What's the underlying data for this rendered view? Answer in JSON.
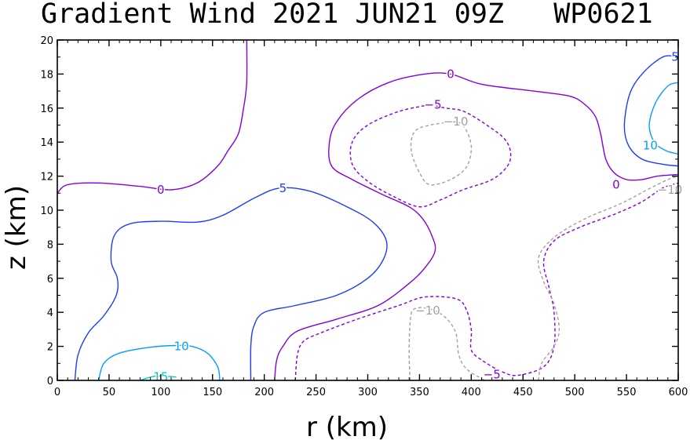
{
  "chart_data": {
    "type": "contour",
    "title": "Gradient Wind 2021 JUN21 09Z   WP0621",
    "xlabel": "r (km)",
    "ylabel": "z (km)",
    "xlim": [
      0,
      600
    ],
    "ylim": [
      0,
      20
    ],
    "xticks": [
      0,
      50,
      100,
      150,
      200,
      250,
      300,
      350,
      400,
      450,
      500,
      550,
      600
    ],
    "yticks": [
      0,
      2,
      4,
      6,
      8,
      10,
      12,
      14,
      16,
      18,
      20
    ],
    "colors": {
      "level_-10": "#a0a0a0",
      "level_-5": "#8200dc",
      "level_0": "#8200dc",
      "level_5": "#1e3cff",
      "level_10": "#00a0ff",
      "level_15": "#00c8c8"
    },
    "contours": [
      {
        "id": "c0_upper_left",
        "level": 0,
        "dashed": false,
        "points": [
          [
            0,
            11.0
          ],
          [
            10,
            11.5
          ],
          [
            40,
            11.6
          ],
          [
            80,
            11.4
          ],
          [
            110,
            11.2
          ],
          [
            135,
            11.6
          ],
          [
            155,
            12.6
          ],
          [
            165,
            13.5
          ],
          [
            175,
            14.5
          ],
          [
            180,
            16
          ],
          [
            183,
            17.5
          ],
          [
            183,
            20
          ]
        ]
      },
      {
        "id": "c0_main",
        "level": 0,
        "dashed": false,
        "points": [
          [
            210,
            0
          ],
          [
            212,
            1.2
          ],
          [
            218,
            2.0
          ],
          [
            232,
            2.9
          ],
          [
            270,
            3.6
          ],
          [
            310,
            4.4
          ],
          [
            340,
            5.7
          ],
          [
            355,
            6.6
          ],
          [
            365,
            7.6
          ],
          [
            362,
            8.5
          ],
          [
            353,
            9.5
          ],
          [
            340,
            10.2
          ],
          [
            315,
            10.9
          ],
          [
            285,
            11.8
          ],
          [
            265,
            12.6
          ],
          [
            263,
            14.0
          ],
          [
            270,
            15.2
          ],
          [
            290,
            16.5
          ],
          [
            320,
            17.5
          ],
          [
            355,
            18.0
          ],
          [
            380,
            18.0
          ],
          [
            410,
            17.4
          ],
          [
            460,
            17.0
          ],
          [
            495,
            16.7
          ],
          [
            510,
            16.2
          ],
          [
            520,
            15.5
          ],
          [
            525,
            14.5
          ],
          [
            530,
            13.0
          ],
          [
            538,
            12.2
          ],
          [
            550,
            11.8
          ],
          [
            565,
            11.8
          ],
          [
            580,
            12.0
          ],
          [
            600,
            12.1
          ]
        ]
      },
      {
        "id": "cm5_upper",
        "level": -5,
        "dashed": true,
        "points": [
          [
            360,
            16.2
          ],
          [
            330,
            15.8
          ],
          [
            300,
            15.0
          ],
          [
            285,
            14.0
          ],
          [
            285,
            12.7
          ],
          [
            300,
            11.7
          ],
          [
            325,
            10.8
          ],
          [
            350,
            10.2
          ],
          [
            370,
            10.6
          ],
          [
            392,
            11.2
          ],
          [
            420,
            11.8
          ],
          [
            435,
            12.6
          ],
          [
            438,
            13.4
          ],
          [
            432,
            14.2
          ],
          [
            415,
            15.0
          ],
          [
            393,
            15.8
          ],
          [
            375,
            16.0
          ],
          [
            360,
            16.2
          ]
        ]
      },
      {
        "id": "cm5_lower",
        "level": -5,
        "dashed": true,
        "points": [
          [
            230,
            0
          ],
          [
            232,
            1.5
          ],
          [
            238,
            2.3
          ],
          [
            255,
            2.8
          ],
          [
            290,
            3.6
          ],
          [
            330,
            4.4
          ],
          [
            355,
            4.9
          ],
          [
            385,
            4.8
          ],
          [
            395,
            4.2
          ],
          [
            400,
            3.0
          ],
          [
            400,
            1.8
          ],
          [
            410,
            1.2
          ],
          [
            430,
            0.5
          ],
          [
            445,
            0.3
          ],
          [
            470,
            0.8
          ],
          [
            480,
            2.0
          ],
          [
            480,
            4.0
          ],
          [
            475,
            5.5
          ],
          [
            470,
            7.0
          ],
          [
            480,
            8.2
          ],
          [
            505,
            9.0
          ],
          [
            540,
            9.8
          ],
          [
            565,
            10.5
          ],
          [
            585,
            11.3
          ],
          [
            600,
            11.6
          ]
        ]
      },
      {
        "id": "cm10_upper",
        "level": -10,
        "dashed": true,
        "points": [
          [
            385,
            15.2
          ],
          [
            360,
            15.0
          ],
          [
            345,
            14.6
          ],
          [
            342,
            13.5
          ],
          [
            350,
            12.2
          ],
          [
            360,
            11.5
          ],
          [
            380,
            11.8
          ],
          [
            395,
            12.5
          ],
          [
            400,
            13.5
          ],
          [
            398,
            14.3
          ],
          [
            392,
            15.0
          ],
          [
            385,
            15.2
          ]
        ]
      },
      {
        "id": "cm10_lower",
        "level": -10,
        "dashed": true,
        "points": [
          [
            341,
            0
          ],
          [
            340,
            1.5
          ],
          [
            341,
            3.5
          ],
          [
            345,
            4.2
          ],
          [
            360,
            4.2
          ],
          [
            375,
            3.7
          ],
          [
            385,
            2.8
          ],
          [
            388,
            1.5
          ],
          [
            395,
            0.7
          ],
          [
            410,
            0.1
          ],
          [
            415,
            0
          ]
        ]
      },
      {
        "id": "cm10_right",
        "level": -10,
        "dashed": true,
        "points": [
          [
            465,
            0
          ],
          [
            468,
            1.0
          ],
          [
            480,
            2.0
          ],
          [
            485,
            3.0
          ],
          [
            480,
            4.5
          ],
          [
            470,
            5.8
          ],
          [
            465,
            7.2
          ],
          [
            480,
            8.4
          ],
          [
            510,
            9.5
          ],
          [
            545,
            10.4
          ],
          [
            570,
            11.2
          ],
          [
            590,
            11.8
          ],
          [
            600,
            12.0
          ]
        ]
      },
      {
        "id": "c5_left",
        "level": 5,
        "dashed": false,
        "points": [
          [
            17,
            0
          ],
          [
            20,
            1.5
          ],
          [
            30,
            2.8
          ],
          [
            45,
            3.8
          ],
          [
            57,
            5.0
          ],
          [
            58,
            6.0
          ],
          [
            52,
            7.0
          ],
          [
            55,
            8.5
          ],
          [
            70,
            9.2
          ],
          [
            100,
            9.35
          ],
          [
            135,
            9.3
          ],
          [
            160,
            9.7
          ],
          [
            190,
            10.7
          ],
          [
            215,
            11.3
          ],
          [
            245,
            11.1
          ],
          [
            280,
            10.2
          ],
          [
            305,
            9.3
          ],
          [
            318,
            8.2
          ],
          [
            315,
            7.1
          ],
          [
            300,
            6.0
          ],
          [
            270,
            5.0
          ],
          [
            230,
            4.4
          ],
          [
            200,
            4.0
          ],
          [
            190,
            3.2
          ],
          [
            187,
            2.0
          ],
          [
            187,
            0
          ]
        ]
      },
      {
        "id": "c5_upper_right",
        "level": 5,
        "dashed": false,
        "points": [
          [
            600,
            19.0
          ],
          [
            585,
            19.0
          ],
          [
            565,
            18.0
          ],
          [
            553,
            16.8
          ],
          [
            548,
            15.0
          ],
          [
            552,
            13.8
          ],
          [
            565,
            13.0
          ],
          [
            585,
            12.7
          ],
          [
            600,
            12.6
          ]
        ]
      },
      {
        "id": "c10_bottom",
        "level": 10,
        "dashed": false,
        "points": [
          [
            40,
            0
          ],
          [
            45,
            1.0
          ],
          [
            60,
            1.6
          ],
          [
            90,
            1.95
          ],
          [
            115,
            2.05
          ],
          [
            130,
            2.0
          ],
          [
            145,
            1.6
          ],
          [
            155,
            0.8
          ],
          [
            157,
            0
          ]
        ]
      },
      {
        "id": "c10_upper_right",
        "level": 10,
        "dashed": false,
        "points": [
          [
            600,
            17.5
          ],
          [
            590,
            17.3
          ],
          [
            578,
            16.3
          ],
          [
            572,
            15.0
          ],
          [
            577,
            14.0
          ],
          [
            588,
            13.5
          ],
          [
            600,
            13.3
          ]
        ]
      },
      {
        "id": "c15_bottom",
        "level": 15,
        "dashed": false,
        "points": [
          [
            80,
            0
          ],
          [
            95,
            0.25
          ],
          [
            115,
            0.2
          ]
        ]
      }
    ],
    "contour_labels": [
      {
        "text": "0",
        "r": 100,
        "z": 11.2,
        "level": 0
      },
      {
        "text": "0",
        "r": 380,
        "z": 18.0,
        "level": 0
      },
      {
        "text": "0",
        "r": 540,
        "z": 11.5,
        "level": 0
      },
      {
        "text": "5",
        "r": 218,
        "z": 11.3,
        "level": 5
      },
      {
        "text": "5",
        "r": 597,
        "z": 19.0,
        "level": 5
      },
      {
        "text": "10",
        "r": 120,
        "z": 2.0,
        "level": 10
      },
      {
        "text": "10",
        "r": 573,
        "z": 13.8,
        "level": 10
      },
      {
        "text": "15",
        "r": 100,
        "z": 0.2,
        "level": 15
      },
      {
        "text": "−5",
        "r": 363,
        "z": 16.2,
        "level": -5
      },
      {
        "text": "−5",
        "r": 420,
        "z": 0.35,
        "level": -5
      },
      {
        "text": "−10",
        "r": 385,
        "z": 15.2,
        "level": -10
      },
      {
        "text": "−10",
        "r": 358,
        "z": 4.1,
        "level": -10
      },
      {
        "text": "−10",
        "r": 592,
        "z": 11.2,
        "level": -10
      }
    ]
  }
}
